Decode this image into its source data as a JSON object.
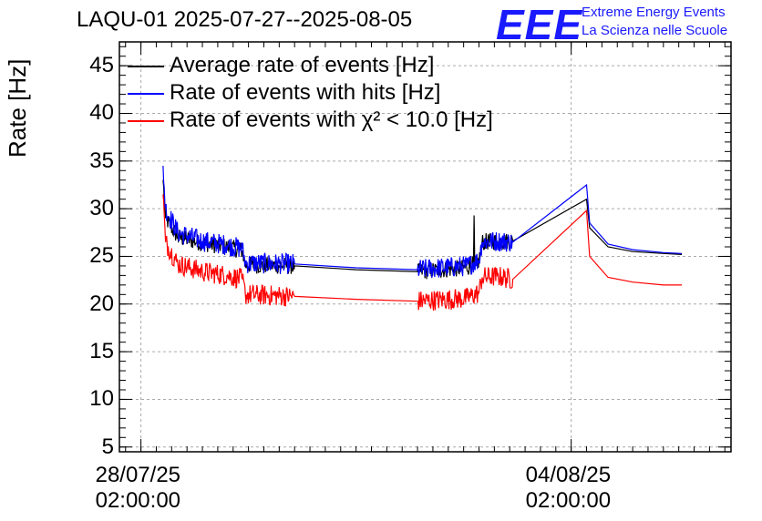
{
  "chart_data": {
    "type": "line",
    "title": "LAQU-01 2025-07-27--2025-08-05",
    "ylabel": "Rate [Hz]",
    "xlabel": "",
    "ylim": [
      4.5,
      47.5
    ],
    "yticks": [
      "5",
      "10",
      "15",
      "20",
      "25",
      "30",
      "35",
      "40",
      "45"
    ],
    "xticks": [
      {
        "x": 0.0,
        "line1": "28/07/25",
        "line2": "02:00:00"
      },
      {
        "x": 7.0,
        "line1": "04/08/25",
        "line2": "02:00:00"
      }
    ],
    "x_unit": "days since 28/07/25 02:00:00",
    "xlim": [
      -0.35,
      9.6
    ],
    "grid": true,
    "legend_placement": "top-left",
    "series": [
      {
        "name": "Average rate of events [Hz]",
        "color": "#000000",
        "points": [
          [
            0.36,
            33.0
          ],
          [
            0.4,
            29.0
          ],
          [
            0.6,
            27.0
          ],
          [
            1.0,
            26.4
          ],
          [
            1.4,
            26.0
          ],
          [
            1.65,
            25.6
          ],
          [
            1.7,
            24.1
          ],
          [
            2.5,
            24.0
          ],
          [
            3.5,
            23.6
          ],
          [
            4.5,
            23.4
          ],
          [
            5.3,
            23.8
          ],
          [
            5.41,
            24.2
          ],
          [
            5.42,
            29.3
          ],
          [
            5.43,
            24.2
          ],
          [
            5.5,
            24.5
          ],
          [
            5.55,
            26.5
          ],
          [
            5.8,
            26.6
          ],
          [
            6.05,
            26.6
          ],
          [
            7.25,
            31.0
          ],
          [
            7.3,
            28.0
          ],
          [
            7.6,
            26.0
          ],
          [
            8.0,
            25.5
          ],
          [
            8.5,
            25.3
          ],
          [
            8.8,
            25.2
          ]
        ]
      },
      {
        "name": "Rate of events with hits [Hz]",
        "color": "#0000ff",
        "points": [
          [
            0.36,
            34.5
          ],
          [
            0.4,
            30.0
          ],
          [
            0.6,
            27.5
          ],
          [
            1.0,
            26.6
          ],
          [
            1.4,
            26.2
          ],
          [
            1.65,
            25.8
          ],
          [
            1.7,
            24.3
          ],
          [
            2.5,
            24.2
          ],
          [
            3.5,
            23.8
          ],
          [
            4.5,
            23.6
          ],
          [
            5.3,
            24.0
          ],
          [
            5.5,
            24.6
          ],
          [
            5.55,
            26.5
          ],
          [
            5.8,
            26.6
          ],
          [
            6.05,
            26.5
          ],
          [
            7.25,
            32.5
          ],
          [
            7.3,
            28.5
          ],
          [
            7.6,
            26.3
          ],
          [
            8.0,
            25.7
          ],
          [
            8.5,
            25.4
          ],
          [
            8.8,
            25.3
          ]
        ]
      },
      {
        "name": "Rate of events with χ² < 10.0 [Hz]",
        "color": "#ff0000",
        "points": [
          [
            0.36,
            31.5
          ],
          [
            0.4,
            26.5
          ],
          [
            0.6,
            24.2
          ],
          [
            1.0,
            23.4
          ],
          [
            1.4,
            23.0
          ],
          [
            1.65,
            22.6
          ],
          [
            1.7,
            21.0
          ],
          [
            2.5,
            20.8
          ],
          [
            3.5,
            20.5
          ],
          [
            4.5,
            20.3
          ],
          [
            5.3,
            20.6
          ],
          [
            5.5,
            21.2
          ],
          [
            5.55,
            22.8
          ],
          [
            5.8,
            22.9
          ],
          [
            6.05,
            22.6
          ],
          [
            7.25,
            29.8
          ],
          [
            7.3,
            25.0
          ],
          [
            7.6,
            22.8
          ],
          [
            8.0,
            22.3
          ],
          [
            8.5,
            22.0
          ],
          [
            8.8,
            22.0
          ]
        ]
      }
    ]
  },
  "logo": {
    "mark": "EEE",
    "line1": "Extreme Energy Events",
    "line2": "La Scienza nelle Scuole"
  }
}
